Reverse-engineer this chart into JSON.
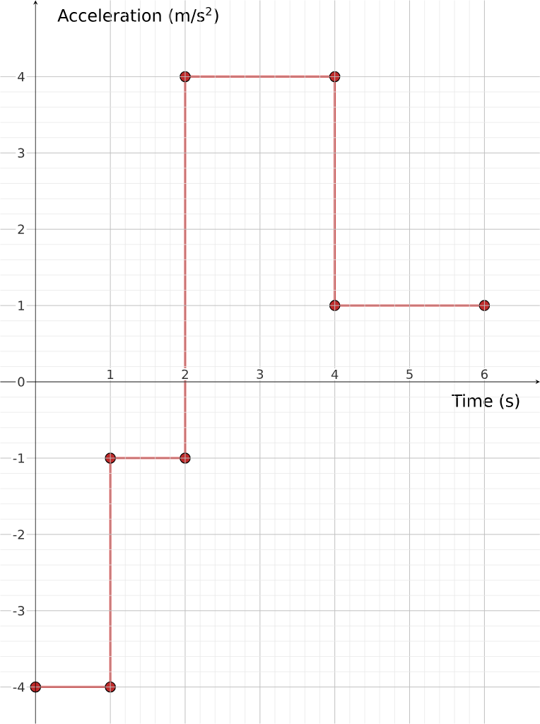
{
  "chart_data": {
    "type": "line",
    "xlabel": "Time (s)",
    "ylabel": "Acceleration (m/s$^{2}$)",
    "x": [
      0,
      1,
      1,
      2,
      2,
      4,
      4,
      6
    ],
    "series": [
      {
        "color": "#d32f2f",
        "values": [
          -4,
          -4,
          -1,
          -1,
          4,
          4,
          1,
          1
        ]
      }
    ],
    "xlim": [
      -0.47,
      6.74
    ],
    "ylim": [
      -4.48,
      5.0
    ],
    "xticks": [
      1,
      2,
      3,
      4,
      5,
      6
    ],
    "yticks": [
      -4,
      -3,
      -2,
      -1,
      0,
      1,
      2,
      3,
      4
    ],
    "grid": true,
    "marker": "circle",
    "line_style": "solid"
  }
}
